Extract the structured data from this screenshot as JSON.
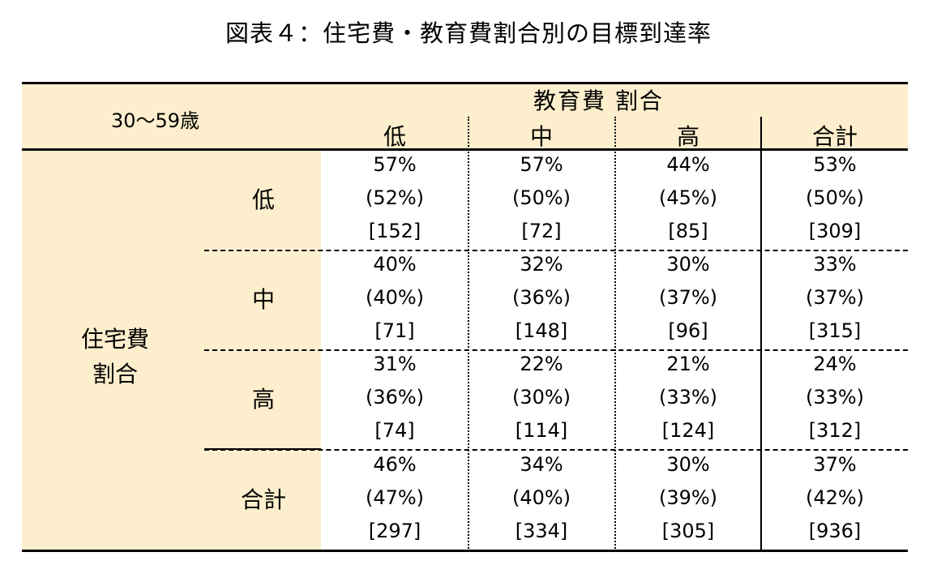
{
  "title": "図表４：住宅費・教育費割合別の目標到達率",
  "chart_data": {
    "type": "table",
    "corner_label": "30～59歳",
    "column_group_label": "教育費 割合",
    "row_group_label": [
      "住宅費",
      "割合"
    ],
    "columns": [
      "低",
      "中",
      "高",
      "合計"
    ],
    "rows": [
      {
        "label": "低",
        "cells": [
          {
            "rate": "57%",
            "alt": "(52%)",
            "n": "[152]"
          },
          {
            "rate": "57%",
            "alt": "(50%)",
            "n": "[72]"
          },
          {
            "rate": "44%",
            "alt": "(45%)",
            "n": "[85]"
          },
          {
            "rate": "53%",
            "alt": "(50%)",
            "n": "[309]"
          }
        ]
      },
      {
        "label": "中",
        "cells": [
          {
            "rate": "40%",
            "alt": "(40%)",
            "n": "[71]"
          },
          {
            "rate": "32%",
            "alt": "(36%)",
            "n": "[148]"
          },
          {
            "rate": "30%",
            "alt": "(37%)",
            "n": "[96]"
          },
          {
            "rate": "33%",
            "alt": "(37%)",
            "n": "[315]"
          }
        ]
      },
      {
        "label": "高",
        "cells": [
          {
            "rate": "31%",
            "alt": "(36%)",
            "n": "[74]"
          },
          {
            "rate": "22%",
            "alt": "(30%)",
            "n": "[114]"
          },
          {
            "rate": "21%",
            "alt": "(33%)",
            "n": "[124]"
          },
          {
            "rate": "24%",
            "alt": "(33%)",
            "n": "[312]"
          }
        ]
      },
      {
        "label": "合計",
        "cells": [
          {
            "rate": "46%",
            "alt": "(47%)",
            "n": "[297]"
          },
          {
            "rate": "34%",
            "alt": "(40%)",
            "n": "[334]"
          },
          {
            "rate": "30%",
            "alt": "(39%)",
            "n": "[305]"
          },
          {
            "rate": "37%",
            "alt": "(42%)",
            "n": "[936]"
          }
        ]
      }
    ]
  }
}
